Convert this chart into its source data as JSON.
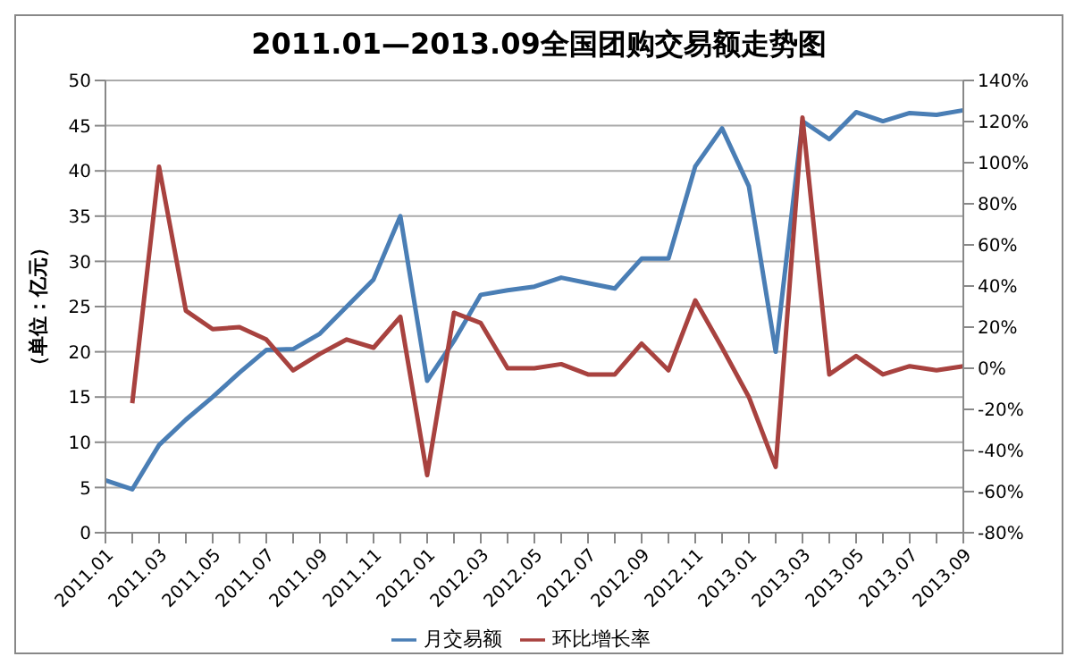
{
  "chart_data": {
    "type": "line",
    "title": "2011.01—2013.09全国团购交易额走势图",
    "ylabel": "（单位：亿元）",
    "categories": [
      "2011.01",
      null,
      "2011.03",
      null,
      "2011.05",
      null,
      "2011.07",
      null,
      "2011.09",
      null,
      "2011.11",
      null,
      "2012.01",
      null,
      "2012.03",
      null,
      "2012.05",
      null,
      "2012.07",
      null,
      "2012.09",
      null,
      "2012.11",
      null,
      "2013.01",
      null,
      "2013.03",
      null,
      "2013.05",
      null,
      "2013.07",
      null,
      "2013.09"
    ],
    "series": [
      {
        "name": "月交易额",
        "color": "#4a7eb5",
        "values": [
          5.8,
          4.8,
          9.7,
          12.5,
          15,
          17.7,
          20.2,
          20.3,
          22,
          25,
          28,
          35,
          16.8,
          21.2,
          26.3,
          26.8,
          27.2,
          28.2,
          27.6,
          27,
          30.3,
          30.3,
          40.5,
          44.7,
          38.3,
          20,
          45.5,
          43.5,
          46.5,
          45.5,
          46.4,
          46.2,
          46.7
        ]
      },
      {
        "name": "环比增长率",
        "color": "#a8423f",
        "axis": "y2",
        "values": [
          null,
          -17,
          98,
          28,
          19,
          20,
          14,
          -1,
          7,
          14,
          10,
          25,
          -52,
          27,
          22,
          0,
          0,
          2,
          -3,
          -3,
          12,
          -1,
          33,
          10,
          -14,
          -48,
          122,
          -3,
          6,
          -3,
          1,
          -1,
          1
        ]
      }
    ],
    "ylim": [
      0,
      50
    ],
    "yticks": [
      0,
      5,
      10,
      15,
      20,
      25,
      30,
      35,
      40,
      45,
      50
    ],
    "y2lim": [
      -80,
      140
    ],
    "y2ticks": [
      {
        "value": -80,
        "label": "-80%"
      },
      {
        "value": -60,
        "label": "-60%"
      },
      {
        "value": -40,
        "label": "-40%"
      },
      {
        "value": -20,
        "label": "-20%"
      },
      {
        "value": 0,
        "label": "0%"
      },
      {
        "value": 20,
        "label": "20%"
      },
      {
        "value": 40,
        "label": "40%"
      },
      {
        "value": 60,
        "label": "60%"
      },
      {
        "value": 80,
        "label": "80%"
      },
      {
        "value": 100,
        "label": "100%"
      },
      {
        "value": 120,
        "label": "120%"
      },
      {
        "value": 140,
        "label": "140%"
      }
    ],
    "grid": "y",
    "legend": "bottom",
    "marker": "none",
    "line_style": "solid"
  }
}
